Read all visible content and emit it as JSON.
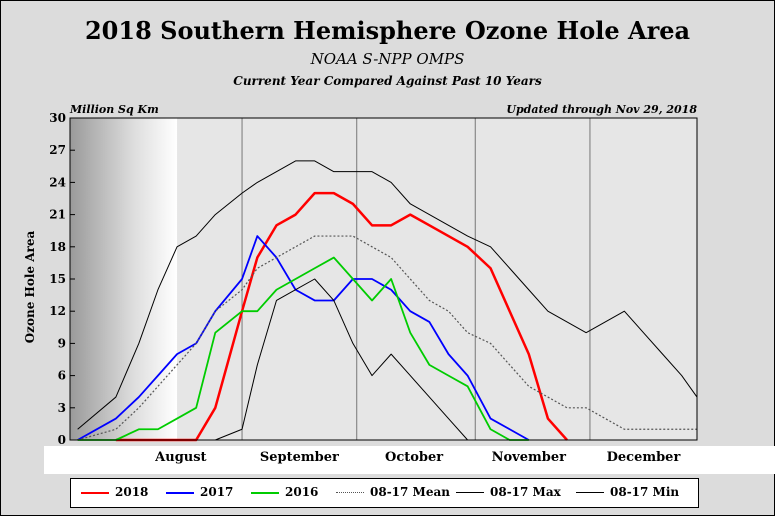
{
  "header": {
    "title": "2018 Southern Hemisphere Ozone Hole Area",
    "subtitle": "NOAA S-NPP OMPS",
    "subtitle2": "Current Year Compared Against Past 10 Years",
    "units": "Million Sq Km",
    "updated": "Updated through Nov 29, 2018"
  },
  "chart_data": {
    "type": "line",
    "title": "2018 Southern Hemisphere Ozone Hole Area",
    "ylabel": "Ozone Hole Area",
    "ylim": [
      0,
      30
    ],
    "yticks": [
      0,
      3,
      6,
      9,
      12,
      15,
      18,
      21,
      24,
      27,
      30
    ],
    "xlim": [
      "Jul 18",
      "Dec 29"
    ],
    "month_labels": [
      "August",
      "September",
      "October",
      "November",
      "December"
    ],
    "month_boundaries": [
      "Sep 1",
      "Oct 1",
      "Nov 1",
      "Dec 1"
    ],
    "grid": "vertical at month starts",
    "legend_position": "bottom",
    "x_dates": [
      "Jul 20",
      "Jul 30",
      "Aug 5",
      "Aug 10",
      "Aug 15",
      "Aug 20",
      "Aug 25",
      "Sep 1",
      "Sep 5",
      "Sep 10",
      "Sep 15",
      "Sep 20",
      "Sep 25",
      "Sep 30",
      "Oct 5",
      "Oct 10",
      "Oct 15",
      "Oct 20",
      "Oct 25",
      "Oct 30",
      "Nov 5",
      "Nov 10",
      "Nov 15",
      "Nov 20",
      "Nov 25",
      "Nov 30",
      "Dec 5",
      "Dec 10",
      "Dec 15",
      "Dec 20",
      "Dec 25",
      "Dec 29"
    ],
    "series": [
      {
        "name": "2018",
        "color": "#ff0000",
        "width": 2.5,
        "dash": "",
        "values": [
          null,
          0,
          0,
          0,
          0,
          0,
          3,
          12,
          17,
          20,
          21,
          23,
          23,
          22,
          20,
          20,
          21,
          20,
          19,
          18,
          16,
          12,
          8,
          2,
          0,
          null,
          null,
          null,
          null,
          null,
          null,
          null
        ]
      },
      {
        "name": "2017",
        "color": "#0000ff",
        "width": 1.8,
        "dash": "",
        "values": [
          0,
          2,
          4,
          6,
          8,
          9,
          12,
          15,
          19,
          17,
          14,
          13,
          13,
          15,
          15,
          14,
          12,
          11,
          8,
          6,
          2,
          1,
          0,
          null,
          null,
          null,
          null,
          null,
          null,
          null,
          null,
          null
        ]
      },
      {
        "name": "2016",
        "color": "#00cc00",
        "width": 1.8,
        "dash": "",
        "values": [
          0,
          0,
          1,
          1,
          2,
          3,
          10,
          12,
          12,
          14,
          15,
          16,
          17,
          15,
          13,
          15,
          10,
          7,
          6,
          5,
          1,
          0,
          0,
          null,
          null,
          null,
          null,
          null,
          null,
          null,
          null,
          null
        ]
      },
      {
        "name": "08-17 Mean",
        "color": "#555555",
        "width": 1.2,
        "dash": "2,2",
        "values": [
          0,
          1,
          3,
          5,
          7,
          9,
          12,
          14,
          16,
          17,
          18,
          19,
          19,
          19,
          18,
          17,
          15,
          13,
          12,
          10,
          9,
          7,
          5,
          4,
          3,
          3,
          2,
          1,
          1,
          1,
          1,
          1
        ]
      },
      {
        "name": "08-17 Max",
        "color": "#000000",
        "width": 1,
        "dash": "",
        "values": [
          1,
          4,
          9,
          14,
          18,
          19,
          21,
          23,
          24,
          25,
          26,
          26,
          25,
          25,
          25,
          24,
          22,
          21,
          20,
          19,
          18,
          16,
          14,
          12,
          11,
          10,
          11,
          12,
          10,
          8,
          6,
          4
        ]
      },
      {
        "name": "08-17 Min",
        "color": "#000000",
        "width": 1,
        "dash": "",
        "values": [
          0,
          0,
          0,
          0,
          0,
          0,
          0,
          1,
          7,
          13,
          14,
          15,
          13,
          9,
          6,
          8,
          6,
          4,
          2,
          0,
          0,
          0,
          0,
          0,
          0,
          null,
          null,
          null,
          null,
          null,
          null,
          null
        ]
      }
    ]
  },
  "legend": [
    {
      "label": "2018",
      "color": "#ff0000",
      "dash": ""
    },
    {
      "label": "2017",
      "color": "#0000ff",
      "dash": ""
    },
    {
      "label": "2016",
      "color": "#00cc00",
      "dash": ""
    },
    {
      "label": "08-17 Mean",
      "color": "#555555",
      "dash": "dotted"
    },
    {
      "label": "08-17 Max",
      "color": "#000000",
      "dash": ""
    },
    {
      "label": "08-17 Min",
      "color": "#000000",
      "dash": ""
    }
  ]
}
